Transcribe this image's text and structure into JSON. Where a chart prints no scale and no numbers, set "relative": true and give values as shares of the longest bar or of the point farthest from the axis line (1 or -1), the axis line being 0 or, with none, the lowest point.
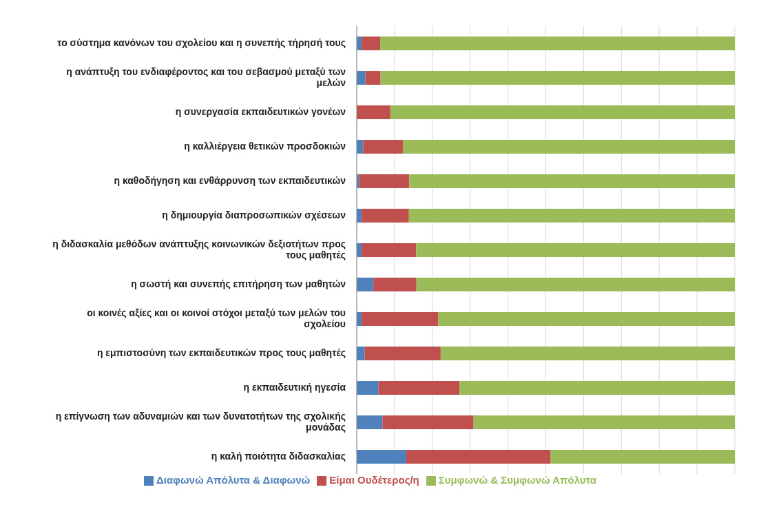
{
  "chart_data": {
    "type": "bar",
    "orientation": "horizontal",
    "stacked": true,
    "relative": true,
    "grid": "x",
    "legend": "bottom",
    "categories": [
      "το σύστημα κανόνων του σχολείου και η συνεπής τήρησή τους",
      "η ανάπτυξη του ενδιαφέροντος και του σεβασμού μεταξύ των μελών",
      "η συνεργασία εκπαιδευτικών γονέων",
      "η καλλιέργεια θετικών προσδοκιών",
      "η καθοδήγηση και ενθάρρυνση των εκπαιδευτικών",
      "η δημιουργία διαπροσωπικών σχέσεων",
      "η διδασκαλία μεθόδων ανάπτυξης κοινωνικών δεξιοτήτων προς τους μαθητές",
      "η σωστή και συνεπής επιτήρηση των μαθητών",
      "οι κοινές αξίες και οι κοινοί στόχοι μεταξύ των μελών του σχολείου",
      "η εμπιστοσύνη των εκπαιδευτικών προς τους μαθητές",
      "η εκπαιδευτική ηγεσία",
      "η επίγνωση των αδυναμιών και των δυνατοτήτων της σχολικής μονάδας",
      "η καλή ποιότητα διδασκαλίας"
    ],
    "series": [
      {
        "name": "Διαφωνώ Απόλυτα & Διαφωνώ",
        "color": "#4f81bd",
        "values": [
          0.013,
          0.023,
          0,
          0.017,
          0.006,
          0.013,
          0.013,
          0.044,
          0.013,
          0.021,
          0.057,
          0.068,
          0.131
        ]
      },
      {
        "name": "Είμαι Ουδέτερος/η",
        "color": "#c0504d",
        "values": [
          0.049,
          0.04,
          0.089,
          0.105,
          0.133,
          0.125,
          0.144,
          0.114,
          0.203,
          0.201,
          0.215,
          0.241,
          0.382
        ]
      },
      {
        "name": "Συμφωνώ & Συμφωνώ Απόλυτα",
        "color": "#9bbb59",
        "values": [
          0.938,
          0.937,
          0.911,
          0.878,
          0.861,
          0.862,
          0.843,
          0.842,
          0.784,
          0.778,
          0.728,
          0.691,
          0.487
        ]
      }
    ]
  }
}
